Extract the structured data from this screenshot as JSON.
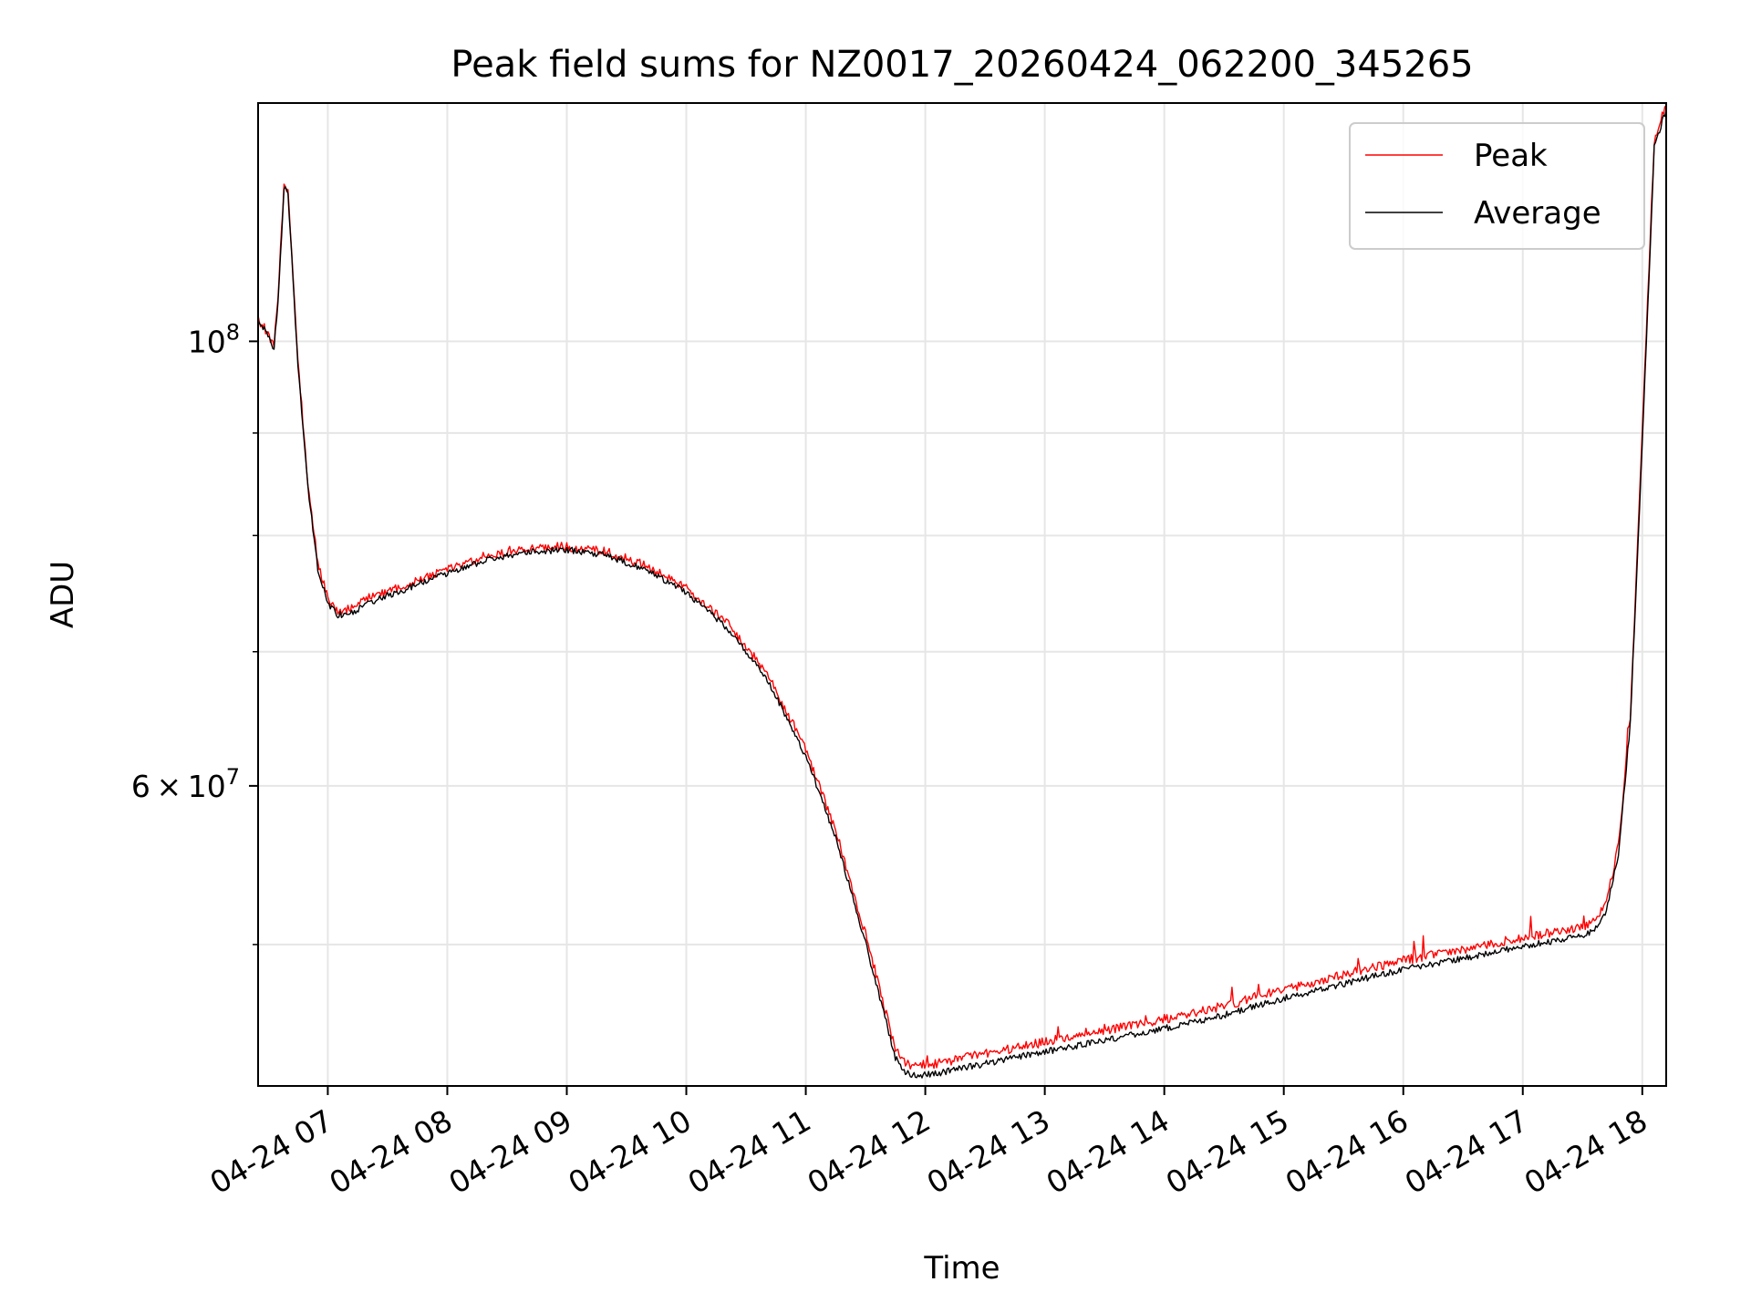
{
  "colors": {
    "peak": "#ff0000",
    "average": "#000000",
    "grid": "#e6e6e6",
    "axes": "#000000",
    "legend_border": "#cccccc"
  },
  "chart_data": {
    "type": "line",
    "title": "Peak field sums for NZ0017_20260424_062200_345265",
    "xlabel": "Time",
    "ylabel": "ADU",
    "x_axis": "time",
    "xlim": [
      "2026-04-24 06:25",
      "2026-04-24 18:12"
    ],
    "ylim": [
      42500000,
      131500000
    ],
    "yscale": "log",
    "grid": true,
    "legend_position": "top-right",
    "x_ticks": [
      {
        "t": "2026-04-24 07:00",
        "label": "04-24 07"
      },
      {
        "t": "2026-04-24 08:00",
        "label": "04-24 08"
      },
      {
        "t": "2026-04-24 09:00",
        "label": "04-24 09"
      },
      {
        "t": "2026-04-24 10:00",
        "label": "04-24 10"
      },
      {
        "t": "2026-04-24 11:00",
        "label": "04-24 11"
      },
      {
        "t": "2026-04-24 12:00",
        "label": "04-24 12"
      },
      {
        "t": "2026-04-24 13:00",
        "label": "04-24 13"
      },
      {
        "t": "2026-04-24 14:00",
        "label": "04-24 14"
      },
      {
        "t": "2026-04-24 15:00",
        "label": "04-24 15"
      },
      {
        "t": "2026-04-24 16:00",
        "label": "04-24 16"
      },
      {
        "t": "2026-04-24 17:00",
        "label": "04-24 17"
      },
      {
        "t": "2026-04-24 18:00",
        "label": "04-24 18"
      }
    ],
    "y_major_ticks": [
      {
        "value": 60000000,
        "mantissa": "6",
        "exp": "7"
      },
      {
        "value": 100000000,
        "mantissa": "",
        "exp": "8"
      }
    ],
    "y_minor_ticks": [
      50000000,
      70000000,
      80000000,
      90000000
    ],
    "series": [
      {
        "name": "Peak",
        "color": "#ff0000",
        "x": [
          "2026-04-24 06:25",
          "2026-04-24 06:30",
          "2026-04-24 06:33",
          "2026-04-24 06:35",
          "2026-04-24 06:38",
          "2026-04-24 06:40",
          "2026-04-24 06:45",
          "2026-04-24 06:50",
          "2026-04-24 06:55",
          "2026-04-24 07:00",
          "2026-04-24 07:05",
          "2026-04-24 07:12",
          "2026-04-24 07:20",
          "2026-04-24 07:40",
          "2026-04-24 08:00",
          "2026-04-24 08:20",
          "2026-04-24 08:40",
          "2026-04-24 09:00",
          "2026-04-24 09:20",
          "2026-04-24 09:40",
          "2026-04-24 10:00",
          "2026-04-24 10:20",
          "2026-04-24 10:40",
          "2026-04-24 11:00",
          "2026-04-24 11:15",
          "2026-04-24 11:30",
          "2026-04-24 11:45",
          "2026-04-24 11:50",
          "2026-04-24 11:55",
          "2026-04-24 12:05",
          "2026-04-24 12:15",
          "2026-04-24 12:30",
          "2026-04-24 13:00",
          "2026-04-24 13:30",
          "2026-04-24 14:00",
          "2026-04-24 14:30",
          "2026-04-24 15:00",
          "2026-04-24 15:30",
          "2026-04-24 16:00",
          "2026-04-24 16:30",
          "2026-04-24 17:00",
          "2026-04-24 17:30",
          "2026-04-24 17:36",
          "2026-04-24 17:42",
          "2026-04-24 17:48",
          "2026-04-24 17:54",
          "2026-04-24 18:00",
          "2026-04-24 18:06",
          "2026-04-24 18:12"
        ],
        "y": [
          102500000,
          101000000,
          99500000,
          105000000,
          120000000,
          119000000,
          98000000,
          85000000,
          77500000,
          74500000,
          73400000,
          73600000,
          74400000,
          75700000,
          77000000,
          78200000,
          78900000,
          79000000,
          78500000,
          77300000,
          75300000,
          72400000,
          68400000,
          62600000,
          57000000,
          50600000,
          44300000,
          43600000,
          43500000,
          43600000,
          43800000,
          44100000,
          44700000,
          45300000,
          45900000,
          46600000,
          47500000,
          48300000,
          49100000,
          49700000,
          50400000,
          51000000,
          51300000,
          52500000,
          56000000,
          65000000,
          90000000,
          126000000,
          131000000
        ]
      },
      {
        "name": "Average",
        "color": "#000000",
        "x": [
          "2026-04-24 06:25",
          "2026-04-24 06:30",
          "2026-04-24 06:33",
          "2026-04-24 06:35",
          "2026-04-24 06:38",
          "2026-04-24 06:40",
          "2026-04-24 06:45",
          "2026-04-24 06:50",
          "2026-04-24 06:55",
          "2026-04-24 07:00",
          "2026-04-24 07:05",
          "2026-04-24 07:12",
          "2026-04-24 07:20",
          "2026-04-24 07:40",
          "2026-04-24 08:00",
          "2026-04-24 08:20",
          "2026-04-24 08:40",
          "2026-04-24 09:00",
          "2026-04-24 09:20",
          "2026-04-24 09:40",
          "2026-04-24 10:00",
          "2026-04-24 10:20",
          "2026-04-24 10:40",
          "2026-04-24 11:00",
          "2026-04-24 11:15",
          "2026-04-24 11:30",
          "2026-04-24 11:45",
          "2026-04-24 11:50",
          "2026-04-24 11:55",
          "2026-04-24 12:05",
          "2026-04-24 12:15",
          "2026-04-24 12:30",
          "2026-04-24 13:00",
          "2026-04-24 13:30",
          "2026-04-24 14:00",
          "2026-04-24 14:30",
          "2026-04-24 15:00",
          "2026-04-24 15:30",
          "2026-04-24 16:00",
          "2026-04-24 16:30",
          "2026-04-24 17:00",
          "2026-04-24 17:30",
          "2026-04-24 17:36",
          "2026-04-24 17:42",
          "2026-04-24 17:48",
          "2026-04-24 17:54",
          "2026-04-24 18:00",
          "2026-04-24 18:06",
          "2026-04-24 18:12"
        ],
        "y": [
          102300000,
          100800000,
          99200000,
          104500000,
          119500000,
          118500000,
          97500000,
          84500000,
          77000000,
          74000000,
          73000000,
          73200000,
          74000000,
          75300000,
          76600000,
          77800000,
          78500000,
          78700000,
          78200000,
          76900000,
          74900000,
          72000000,
          68000000,
          62100000,
          56500000,
          50100000,
          43900000,
          43200000,
          43000000,
          43100000,
          43300000,
          43600000,
          44200000,
          44800000,
          45400000,
          46100000,
          47000000,
          47800000,
          48600000,
          49200000,
          49900000,
          50500000,
          50800000,
          52000000,
          55500000,
          64500000,
          89000000,
          125000000,
          130500000
        ]
      }
    ]
  }
}
